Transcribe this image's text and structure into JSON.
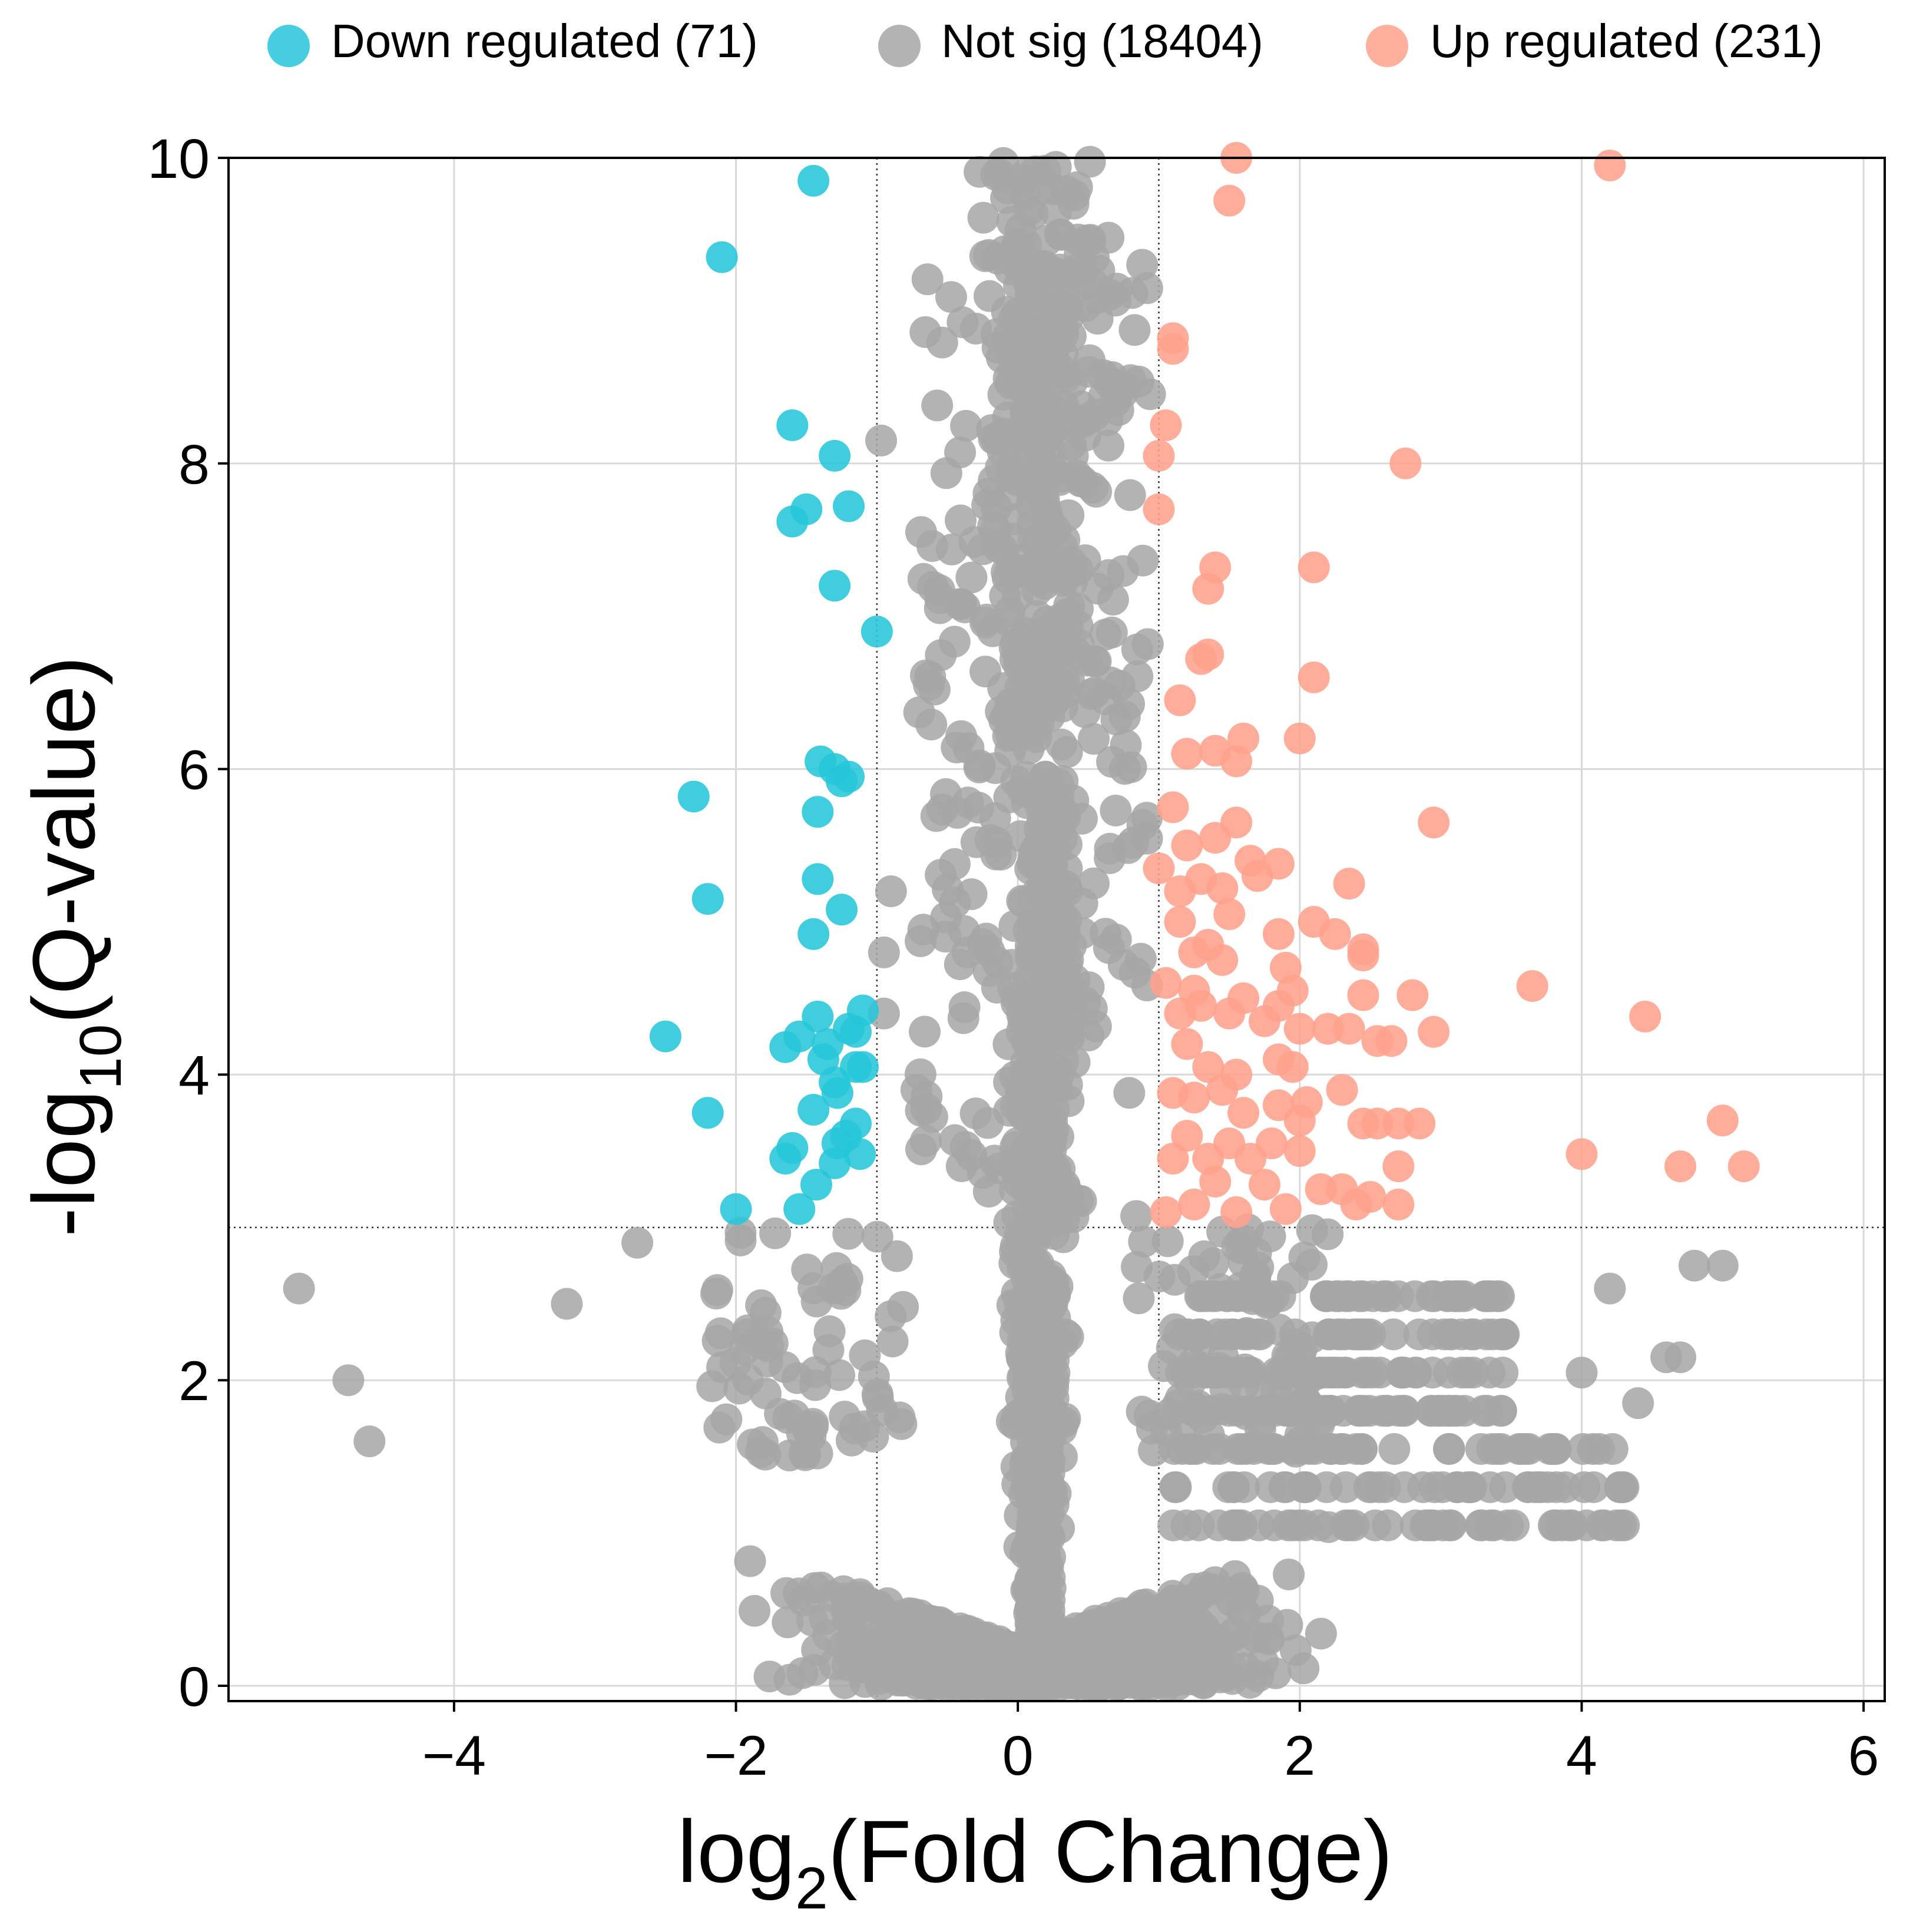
{
  "chart_data": {
    "type": "scatter",
    "xlabel_main": "log",
    "xlabel_sub": "2",
    "xlabel_rest": "(Fold Change)",
    "ylabel_pre": "-log",
    "ylabel_sub": "10",
    "ylabel_rest": "(Q-value)",
    "xlim": [
      -5.6,
      6.15
    ],
    "ylim": [
      -0.1,
      10
    ],
    "x_ticks": [
      -4,
      -2,
      0,
      2,
      4,
      6
    ],
    "y_ticks": [
      0,
      2,
      4,
      6,
      8,
      10
    ],
    "x_tick_labels": [
      "−4",
      "−2",
      "0",
      "2",
      "4",
      "6"
    ],
    "y_tick_labels": [
      "0",
      "2",
      "4",
      "6",
      "8",
      "10"
    ],
    "grid": true,
    "legend_position": "top",
    "thresholds": {
      "log2fc": [
        -1,
        1
      ],
      "neg_log10_q": 3
    },
    "series": [
      {
        "name": "Down regulated (71)",
        "color": "#26c6da",
        "points": [
          [
            -1.45,
            9.85
          ],
          [
            -2.1,
            9.35
          ],
          [
            -1.6,
            8.25
          ],
          [
            -1.3,
            8.05
          ],
          [
            -1.5,
            7.7
          ],
          [
            -1.6,
            7.62
          ],
          [
            -1.2,
            7.72
          ],
          [
            -1.3,
            7.2
          ],
          [
            -1.0,
            6.9
          ],
          [
            -1.4,
            6.05
          ],
          [
            -1.3,
            6.0
          ],
          [
            -1.2,
            5.95
          ],
          [
            -1.25,
            5.92
          ],
          [
            -2.3,
            5.82
          ],
          [
            -1.42,
            5.72
          ],
          [
            -2.2,
            5.15
          ],
          [
            -1.42,
            5.28
          ],
          [
            -1.25,
            5.08
          ],
          [
            -1.45,
            4.92
          ],
          [
            -1.1,
            4.42
          ],
          [
            -1.42,
            4.38
          ],
          [
            -2.5,
            4.25
          ],
          [
            -1.65,
            4.18
          ],
          [
            -1.55,
            4.25
          ],
          [
            -1.2,
            4.3
          ],
          [
            -1.15,
            4.28
          ],
          [
            -1.35,
            4.2
          ],
          [
            -1.1,
            4.05
          ],
          [
            -1.3,
            3.95
          ],
          [
            -1.28,
            3.88
          ],
          [
            -1.15,
            4.05
          ],
          [
            -2.2,
            3.75
          ],
          [
            -1.45,
            3.77
          ],
          [
            -1.15,
            3.68
          ],
          [
            -1.28,
            3.55
          ],
          [
            -1.6,
            3.52
          ],
          [
            -1.65,
            3.45
          ],
          [
            -1.3,
            3.42
          ],
          [
            -1.12,
            3.48
          ],
          [
            -1.43,
            3.28
          ],
          [
            -2.0,
            3.12
          ],
          [
            -1.55,
            3.12
          ],
          [
            -1.22,
            3.6
          ],
          [
            -1.38,
            4.1
          ]
        ]
      },
      {
        "name": "Not sig (18404)",
        "color": "#a6a6a6",
        "points": []
      },
      {
        "name": "Up regulated (231)",
        "color": "#ffa28c",
        "points": [
          [
            1.55,
            10.0
          ],
          [
            4.2,
            9.95
          ],
          [
            1.5,
            9.72
          ],
          [
            1.1,
            8.82
          ],
          [
            1.1,
            8.75
          ],
          [
            1.05,
            8.25
          ],
          [
            1.0,
            8.05
          ],
          [
            2.75,
            8.0
          ],
          [
            1.0,
            7.7
          ],
          [
            1.4,
            7.32
          ],
          [
            2.1,
            7.32
          ],
          [
            1.35,
            7.18
          ],
          [
            1.35,
            6.75
          ],
          [
            1.3,
            6.72
          ],
          [
            2.1,
            6.6
          ],
          [
            1.15,
            6.45
          ],
          [
            1.6,
            6.2
          ],
          [
            2.0,
            6.2
          ],
          [
            1.2,
            6.1
          ],
          [
            1.4,
            6.12
          ],
          [
            1.55,
            6.05
          ],
          [
            2.95,
            5.65
          ],
          [
            1.55,
            5.65
          ],
          [
            1.1,
            5.75
          ],
          [
            1.2,
            5.5
          ],
          [
            1.65,
            5.4
          ],
          [
            1.85,
            5.38
          ],
          [
            2.35,
            5.25
          ],
          [
            1.0,
            5.35
          ],
          [
            1.15,
            5.2
          ],
          [
            1.3,
            5.28
          ],
          [
            1.45,
            5.22
          ],
          [
            1.5,
            5.05
          ],
          [
            2.1,
            5.0
          ],
          [
            2.25,
            4.92
          ],
          [
            1.85,
            4.92
          ],
          [
            1.35,
            4.85
          ],
          [
            1.25,
            4.8
          ],
          [
            1.45,
            4.75
          ],
          [
            2.45,
            4.82
          ],
          [
            2.45,
            4.78
          ],
          [
            3.65,
            4.58
          ],
          [
            1.95,
            4.55
          ],
          [
            2.45,
            4.52
          ],
          [
            2.8,
            4.52
          ],
          [
            1.6,
            4.5
          ],
          [
            1.85,
            4.45
          ],
          [
            1.5,
            4.4
          ],
          [
            4.45,
            4.38
          ],
          [
            1.15,
            4.4
          ],
          [
            1.3,
            4.45
          ],
          [
            1.75,
            4.35
          ],
          [
            2.0,
            4.3
          ],
          [
            2.35,
            4.3
          ],
          [
            2.55,
            4.22
          ],
          [
            2.65,
            4.22
          ],
          [
            2.95,
            4.28
          ],
          [
            1.2,
            4.2
          ],
          [
            1.35,
            4.05
          ],
          [
            1.55,
            4.0
          ],
          [
            1.85,
            4.1
          ],
          [
            1.95,
            4.05
          ],
          [
            1.45,
            3.9
          ],
          [
            1.1,
            3.88
          ],
          [
            1.25,
            3.85
          ],
          [
            1.85,
            3.8
          ],
          [
            2.05,
            3.82
          ],
          [
            2.0,
            3.7
          ],
          [
            2.45,
            3.68
          ],
          [
            2.55,
            3.68
          ],
          [
            2.7,
            3.68
          ],
          [
            2.85,
            3.68
          ],
          [
            5.0,
            3.7
          ],
          [
            1.2,
            3.6
          ],
          [
            1.5,
            3.55
          ],
          [
            1.8,
            3.55
          ],
          [
            2.0,
            3.5
          ],
          [
            1.35,
            3.45
          ],
          [
            1.65,
            3.45
          ],
          [
            4.0,
            3.48
          ],
          [
            2.7,
            3.4
          ],
          [
            4.7,
            3.4
          ],
          [
            5.15,
            3.4
          ],
          [
            1.4,
            3.3
          ],
          [
            1.75,
            3.28
          ],
          [
            2.15,
            3.25
          ],
          [
            2.3,
            3.25
          ],
          [
            2.5,
            3.2
          ],
          [
            2.7,
            3.15
          ],
          [
            1.25,
            3.15
          ],
          [
            1.55,
            3.1
          ],
          [
            1.9,
            3.12
          ],
          [
            2.4,
            3.15
          ],
          [
            1.1,
            3.45
          ],
          [
            1.05,
            4.6
          ],
          [
            1.15,
            5.0
          ],
          [
            1.05,
            3.1
          ],
          [
            1.6,
            3.75
          ],
          [
            1.9,
            4.7
          ],
          [
            2.2,
            4.3
          ],
          [
            1.7,
            5.3
          ],
          [
            1.25,
            4.55
          ],
          [
            1.4,
            5.55
          ],
          [
            2.3,
            3.9
          ]
        ]
      }
    ]
  },
  "legend": {
    "down_label": "Down regulated (71)",
    "notsig_label": "Not sig (18404)",
    "up_label": "Up regulated (231)"
  }
}
